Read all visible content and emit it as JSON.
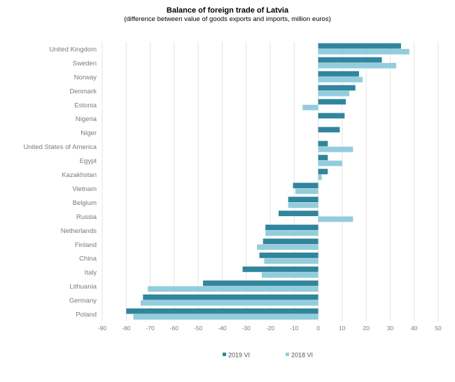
{
  "chart_data": {
    "type": "bar",
    "orientation": "horizontal",
    "title": "Balance of foreign trade of Latvia",
    "subtitle": "(difference between value of goods exports and imports, million euros)",
    "categories": [
      "United Kingdom",
      "Sweden",
      "Norway",
      "Denmark",
      "Estonia",
      "Nigeria",
      "Niger",
      "United States of America",
      "Egypt",
      "Kazakhstan",
      "Vietnam",
      "Belgium",
      "Russia",
      "Netherlands",
      "Finland",
      "China",
      "Italy",
      "Lithuania",
      "Germany",
      "Poland"
    ],
    "series": [
      {
        "name": "2019 VI",
        "color": "#31859c",
        "values": [
          34.5,
          26.5,
          17.0,
          15.5,
          11.5,
          11.0,
          9.0,
          4.0,
          4.0,
          4.0,
          -10.5,
          -12.5,
          -16.5,
          -22.0,
          -23.0,
          -24.5,
          -31.5,
          -48.0,
          -73.0,
          -80.0
        ]
      },
      {
        "name": "2018 VI",
        "color": "#93cddd",
        "values": [
          38.0,
          32.5,
          18.5,
          13.0,
          -6.5,
          null,
          null,
          14.5,
          10.0,
          1.5,
          -9.5,
          -12.5,
          14.5,
          -22.0,
          -25.5,
          -22.5,
          -23.5,
          -71.0,
          -74.0,
          -77.0
        ]
      }
    ],
    "xlim": [
      -90,
      50
    ],
    "xticks": [
      "-90",
      "-80",
      "-70",
      "-60",
      "-50",
      "-40",
      "-30",
      "-20",
      "-10",
      "0",
      "10",
      "20",
      "30",
      "40",
      "50"
    ],
    "grid": "vertical",
    "legend_position": "bottom"
  }
}
